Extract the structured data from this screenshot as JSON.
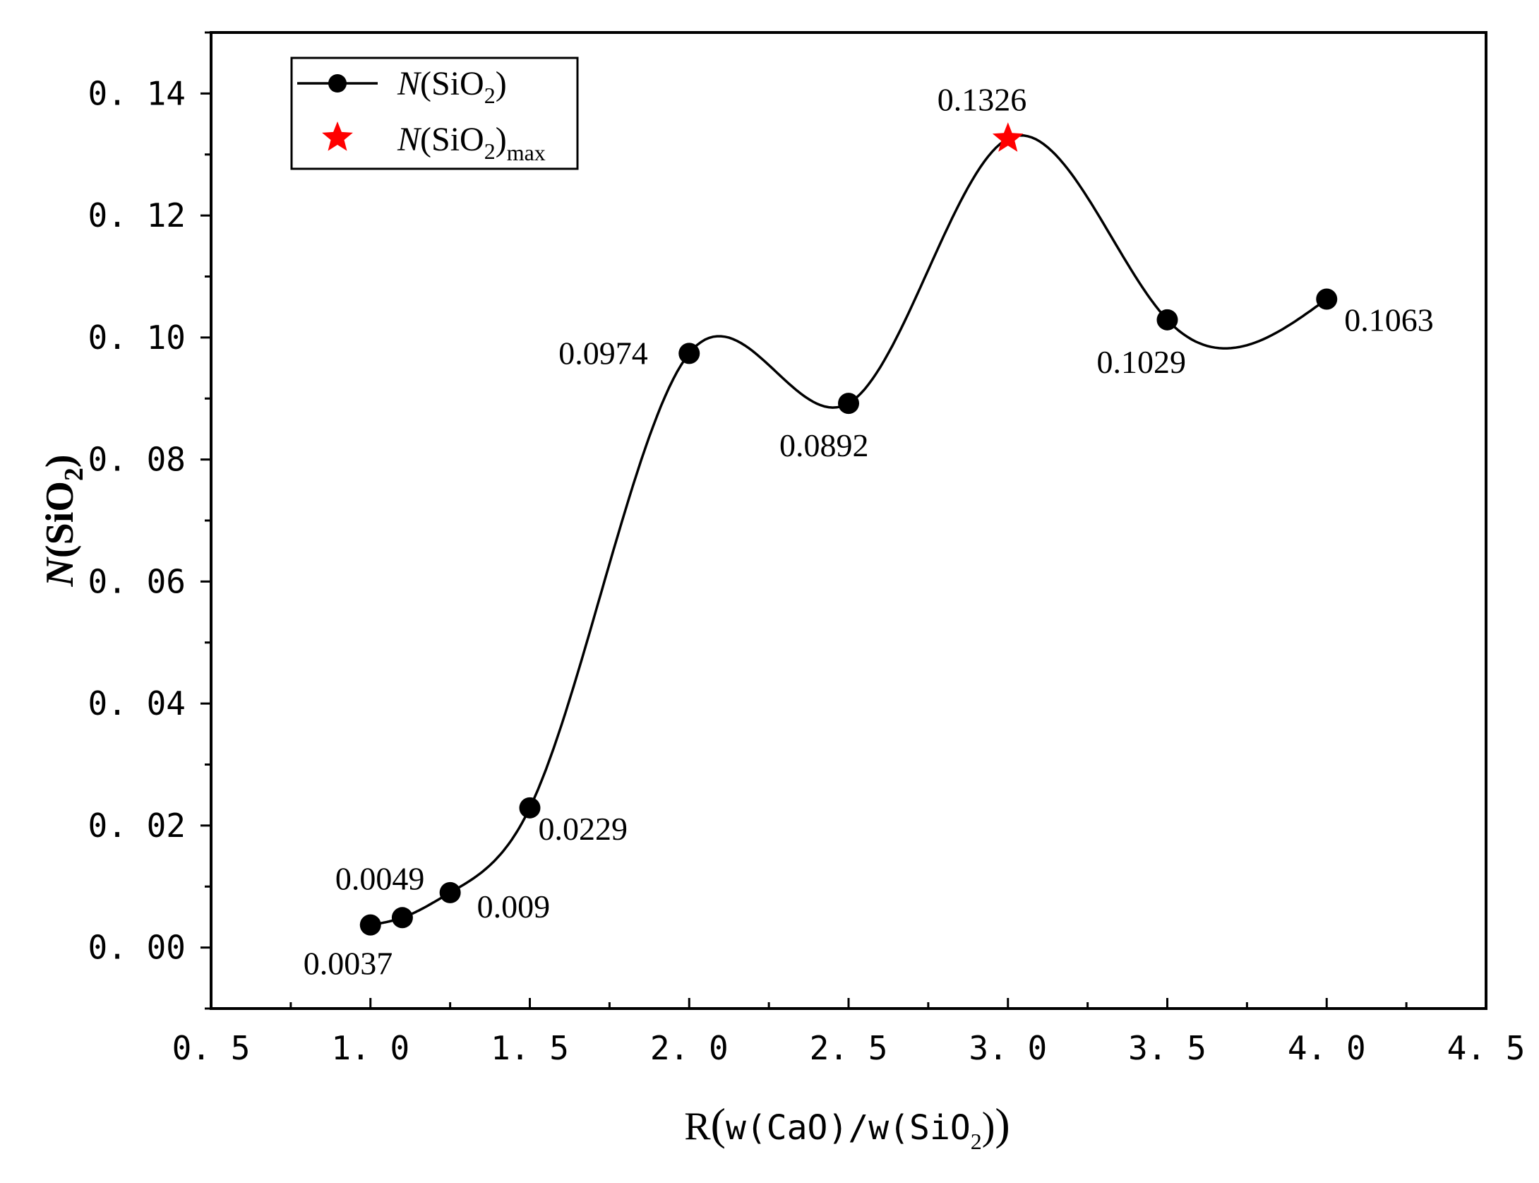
{
  "chart_data": {
    "type": "line",
    "title": "",
    "xlabel": "R(w(CaO)/w(SiO2))",
    "ylabel": "N(SiO2)",
    "xlim": [
      0.5,
      4.5
    ],
    "ylim": [
      -0.01,
      0.15
    ],
    "x_ticks": [
      0.5,
      1.0,
      1.5,
      2.0,
      2.5,
      3.0,
      3.5,
      4.0,
      4.5
    ],
    "x_tick_labels": [
      "0. 5",
      "1. 0",
      "1. 5",
      "2. 0",
      "2. 5",
      "3. 0",
      "3. 5",
      "4. 0",
      "4. 5"
    ],
    "y_ticks": [
      0.0,
      0.02,
      0.04,
      0.06,
      0.08,
      0.1,
      0.12,
      0.14
    ],
    "y_tick_labels": [
      "0. 00",
      "0. 02",
      "0. 04",
      "0. 06",
      "0. 08",
      "0. 10",
      "0. 12",
      "0. 14"
    ],
    "grid": false,
    "legend_position": "top-left",
    "series": [
      {
        "name": "N(SiO2)",
        "marker": "circle",
        "color": "#000000",
        "smooth": true,
        "x": [
          1.0,
          1.1,
          1.25,
          1.5,
          2.0,
          2.5,
          3.0,
          3.5,
          4.0
        ],
        "y": [
          0.0037,
          0.0049,
          0.009,
          0.0229,
          0.0974,
          0.0892,
          0.1326,
          0.1029,
          0.1063
        ],
        "labels": [
          "0.0037",
          "0.0049",
          "0.009",
          "0.0229",
          "0.0974",
          "0.0892",
          "0.1326",
          "0.1029",
          "0.1063"
        ]
      },
      {
        "name": "N(SiO2)max",
        "marker": "star",
        "color": "#ff0000",
        "x": [
          3.0
        ],
        "y": [
          0.1326
        ]
      }
    ],
    "legend": [
      {
        "symbol": "N",
        "open": "(SiO",
        "sub": "2",
        "close": ")",
        "extra": ""
      },
      {
        "symbol": "N",
        "open": "(SiO",
        "sub": "2",
        "close": ")",
        "extra": "max"
      }
    ],
    "xlabel_parts": {
      "pre": "R",
      "lp": "(",
      "mid": "w(CaO)/w(SiO",
      "sub": "2",
      "rp1": ")",
      "rp2": ")"
    },
    "ylabel_parts": {
      "symbol": "N",
      "open": "(SiO",
      "sub": "2",
      "close": ")"
    }
  }
}
